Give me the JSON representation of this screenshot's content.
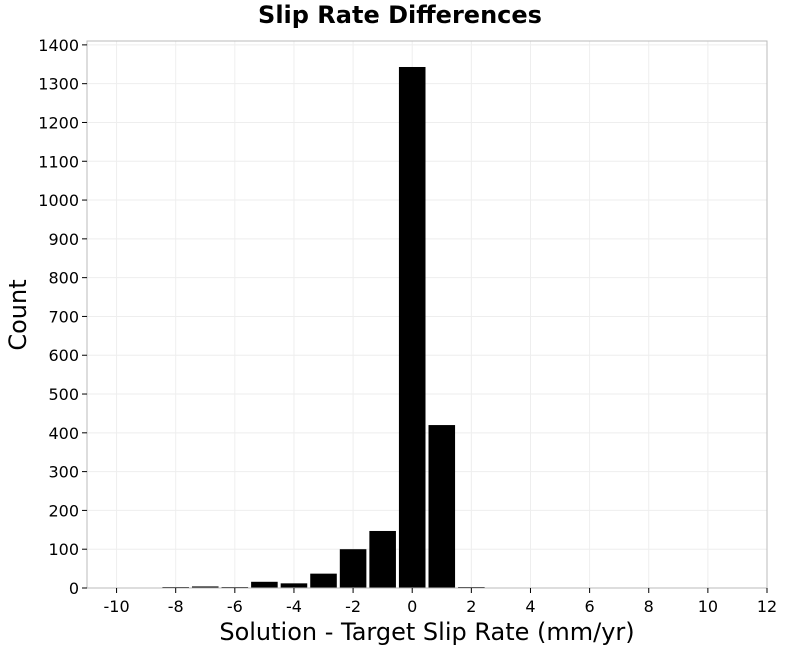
{
  "chart_data": {
    "type": "bar",
    "title": "Slip Rate Differences",
    "xlabel": "Solution - Target Slip Rate (mm/yr)",
    "ylabel": "Count",
    "xlim": [
      -11,
      12
    ],
    "ylim": [
      0,
      1410
    ],
    "xticks": [
      -10,
      -8,
      -6,
      -4,
      -2,
      0,
      2,
      4,
      6,
      8,
      10,
      12
    ],
    "xtick_labels": [
      "-10",
      "-8",
      "-6",
      "-4",
      "-2",
      "0",
      "2",
      "4",
      "6",
      "8",
      "10",
      "12"
    ],
    "yticks": [
      0,
      100,
      200,
      300,
      400,
      500,
      600,
      700,
      800,
      900,
      1000,
      1100,
      1200,
      1300,
      1400
    ],
    "ytick_labels": [
      "0",
      "100",
      "200",
      "300",
      "400",
      "500",
      "600",
      "700",
      "800",
      "900",
      "1000",
      "1100",
      "1200",
      "1300",
      "1400"
    ],
    "bin_width": 1,
    "bins": [
      {
        "center": -8,
        "value": 2
      },
      {
        "center": -7,
        "value": 4
      },
      {
        "center": -6,
        "value": 2
      },
      {
        "center": -5,
        "value": 16
      },
      {
        "center": -4,
        "value": 12
      },
      {
        "center": -3,
        "value": 37
      },
      {
        "center": -2,
        "value": 100
      },
      {
        "center": -1,
        "value": 147
      },
      {
        "center": 0,
        "value": 1343
      },
      {
        "center": 1,
        "value": 420
      },
      {
        "center": 2,
        "value": 2
      }
    ],
    "grid": true,
    "bar_color": "#000000",
    "grid_color": "#eeeeee",
    "frame_color": "#bbbbbb"
  }
}
